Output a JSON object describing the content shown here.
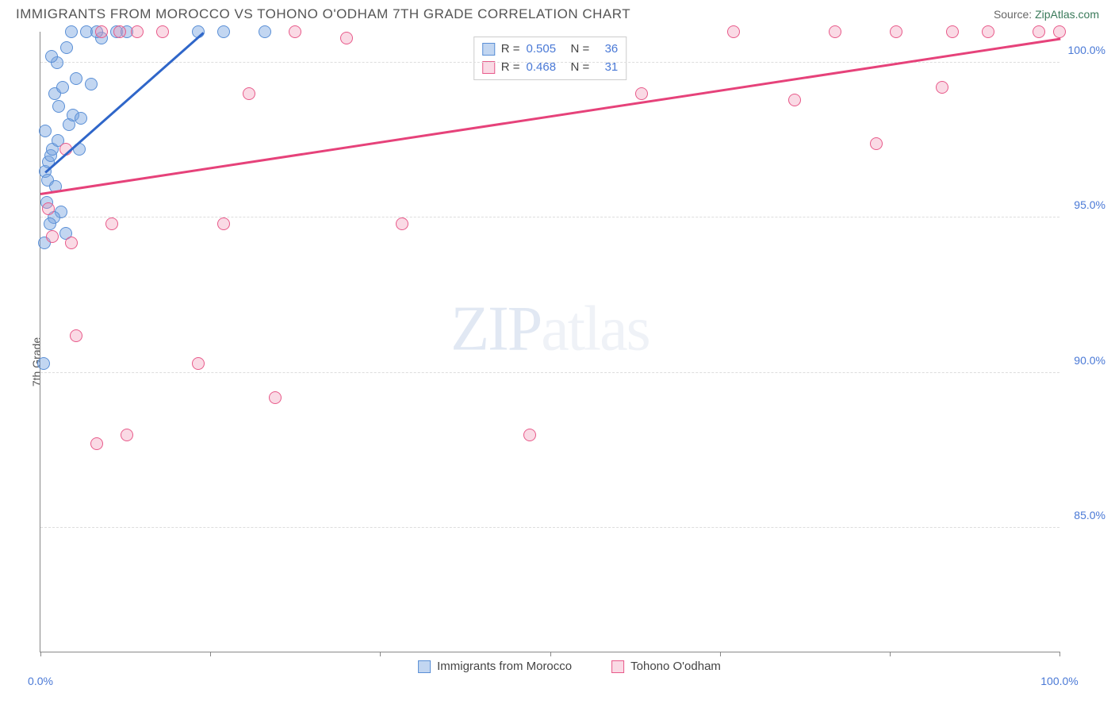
{
  "header": {
    "title": "IMMIGRANTS FROM MOROCCO VS TOHONO O'ODHAM 7TH GRADE CORRELATION CHART",
    "source_label": "Source:",
    "source_name": "ZipAtlas.com"
  },
  "chart": {
    "type": "scatter",
    "ylabel": "7th Grade",
    "background_color": "#ffffff",
    "grid_color": "#dddddd",
    "axis_color": "#888888",
    "xlim": [
      0,
      100
    ],
    "ylim": [
      81,
      101
    ],
    "yticks": [
      {
        "v": 85.0,
        "label": "85.0%"
      },
      {
        "v": 90.0,
        "label": "90.0%"
      },
      {
        "v": 95.0,
        "label": "95.0%"
      },
      {
        "v": 100.0,
        "label": "100.0%"
      }
    ],
    "xtick_marks": [
      0,
      16.67,
      33.33,
      50,
      66.67,
      83.33,
      100
    ],
    "xtick_labels": [
      {
        "v": 0,
        "label": "0.0%"
      },
      {
        "v": 100,
        "label": "100.0%"
      }
    ],
    "tick_label_color": "#4a79d6",
    "watermark": {
      "bold": "ZIP",
      "rest": "atlas"
    },
    "series": [
      {
        "name": "Immigrants from Morocco",
        "color_fill": "rgba(120,165,225,0.45)",
        "color_stroke": "#5a8fd6",
        "trend_color": "#2f66c9",
        "R": "0.505",
        "N": "36",
        "trend": {
          "x1": 0.5,
          "y1": 96.5,
          "x2": 16,
          "y2": 101
        },
        "points": [
          [
            0.5,
            96.5
          ],
          [
            0.8,
            96.8
          ],
          [
            1.0,
            97.0
          ],
          [
            1.2,
            97.2
          ],
          [
            0.7,
            96.2
          ],
          [
            1.5,
            96.0
          ],
          [
            0.6,
            95.5
          ],
          [
            2.0,
            95.2
          ],
          [
            1.3,
            95.0
          ],
          [
            0.9,
            94.8
          ],
          [
            2.5,
            94.5
          ],
          [
            0.4,
            94.2
          ],
          [
            0.3,
            90.3
          ],
          [
            2.8,
            98.0
          ],
          [
            3.2,
            98.3
          ],
          [
            1.8,
            98.6
          ],
          [
            4.0,
            98.2
          ],
          [
            1.4,
            99.0
          ],
          [
            2.2,
            99.2
          ],
          [
            3.5,
            99.5
          ],
          [
            5.0,
            99.3
          ],
          [
            1.6,
            100.0
          ],
          [
            6.0,
            100.8
          ],
          [
            7.5,
            101.0
          ],
          [
            3.0,
            101.0
          ],
          [
            4.5,
            101.0
          ],
          [
            8.5,
            101.0
          ],
          [
            5.5,
            101.0
          ],
          [
            2.6,
            100.5
          ],
          [
            1.1,
            100.2
          ],
          [
            15.5,
            101.0
          ],
          [
            18.0,
            101.0
          ],
          [
            22.0,
            101.0
          ],
          [
            1.7,
            97.5
          ],
          [
            0.5,
            97.8
          ],
          [
            3.8,
            97.2
          ]
        ]
      },
      {
        "name": "Tohono O'odham",
        "color_fill": "rgba(240,150,180,0.35)",
        "color_stroke": "#e85a8a",
        "trend_color": "#e6427a",
        "R": "0.468",
        "N": "31",
        "trend": {
          "x1": 0,
          "y1": 95.8,
          "x2": 100,
          "y2": 100.8
        },
        "points": [
          [
            3.0,
            94.2
          ],
          [
            1.2,
            94.4
          ],
          [
            0.8,
            95.3
          ],
          [
            7.0,
            94.8
          ],
          [
            2.5,
            97.2
          ],
          [
            5.5,
            87.7
          ],
          [
            8.5,
            88.0
          ],
          [
            3.5,
            91.2
          ],
          [
            15.5,
            90.3
          ],
          [
            23.0,
            89.2
          ],
          [
            18.0,
            94.8
          ],
          [
            35.5,
            94.8
          ],
          [
            20.5,
            99.0
          ],
          [
            12.0,
            101.0
          ],
          [
            7.8,
            101.0
          ],
          [
            9.5,
            101.0
          ],
          [
            6.0,
            101.0
          ],
          [
            25.0,
            101.0
          ],
          [
            30.0,
            100.8
          ],
          [
            48.0,
            88.0
          ],
          [
            59.0,
            99.0
          ],
          [
            68.0,
            101.0
          ],
          [
            74.0,
            98.8
          ],
          [
            78.0,
            101.0
          ],
          [
            84.0,
            101.0
          ],
          [
            82.0,
            97.4
          ],
          [
            88.5,
            99.2
          ],
          [
            89.5,
            101.0
          ],
          [
            98.0,
            101.0
          ],
          [
            100.0,
            101.0
          ],
          [
            93.0,
            101.0
          ]
        ]
      }
    ]
  },
  "legend_top": {
    "R_label": "R =",
    "N_label": "N ="
  }
}
